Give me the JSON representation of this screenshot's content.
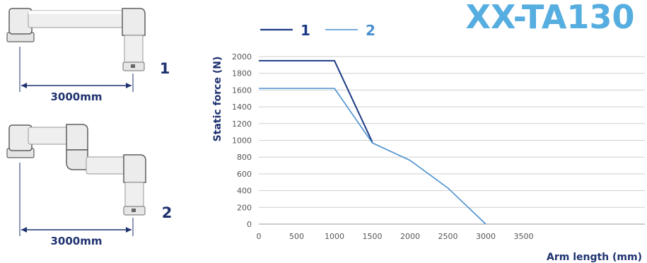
{
  "product": {
    "model": "XX-TA130"
  },
  "arms": [
    {
      "number": "1",
      "length_label": "3000mm"
    },
    {
      "number": "2",
      "length_label": "3000mm"
    }
  ],
  "colors": {
    "series1": "#1c3a84",
    "series2": "#4a8fd0",
    "title": "#56ade0",
    "text_dark": "#1f3270",
    "axis_text": "#555555",
    "grid": "#cfcfcf",
    "arm_fill": "#ececec",
    "arm_edge": "#5f5f5f",
    "dimension_line": "#1f3270"
  },
  "chart_data": {
    "type": "line",
    "xlabel": "Arm length (mm)",
    "ylabel": "Static force (N)",
    "xlim": [
      0,
      3500
    ],
    "ylim": [
      0,
      2000
    ],
    "x_ticks": [
      "0",
      "500",
      "1000",
      "1500",
      "2000",
      "2500",
      "3000",
      "3500"
    ],
    "y_ticks": [
      "0",
      "200",
      "400",
      "600",
      "800",
      "1000",
      "1200",
      "1400",
      "1600",
      "1800",
      "2000"
    ],
    "grid": "horizontal",
    "legend_position": "top",
    "series": [
      {
        "name": "1",
        "color_key": "series1",
        "points": [
          [
            0,
            1950
          ],
          [
            1000,
            1950
          ],
          [
            1500,
            980
          ]
        ]
      },
      {
        "name": "2",
        "color_key": "series2",
        "points": [
          [
            0,
            1620
          ],
          [
            1000,
            1620
          ],
          [
            1500,
            970
          ],
          [
            2000,
            760
          ],
          [
            2500,
            430
          ],
          [
            3000,
            0
          ]
        ]
      }
    ]
  }
}
